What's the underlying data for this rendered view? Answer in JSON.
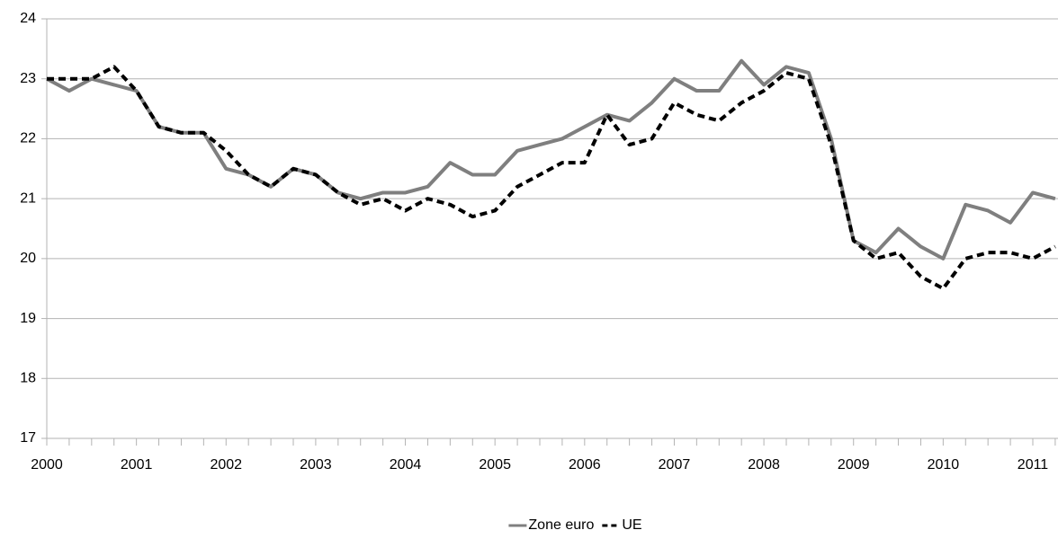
{
  "chart_data": {
    "type": "line",
    "categories": [
      "2000",
      null,
      null,
      null,
      "2001",
      null,
      null,
      null,
      "2002",
      null,
      null,
      null,
      "2003",
      null,
      null,
      null,
      "2004",
      null,
      null,
      null,
      "2005",
      null,
      null,
      null,
      "2006",
      null,
      null,
      null,
      "2007",
      null,
      null,
      null,
      "2008",
      null,
      null,
      null,
      "2009",
      null,
      null,
      null,
      "2010",
      null,
      null,
      null,
      "2011",
      null
    ],
    "series": [
      {
        "name": "Zone euro",
        "color": "#7f7f7f",
        "dash": false,
        "values": [
          23.0,
          22.8,
          23.0,
          22.9,
          22.8,
          22.2,
          22.1,
          22.1,
          21.5,
          21.4,
          21.2,
          21.5,
          21.4,
          21.1,
          21.0,
          21.1,
          21.1,
          21.2,
          21.6,
          21.4,
          21.4,
          21.8,
          21.9,
          22.0,
          22.2,
          22.4,
          22.3,
          22.6,
          23.0,
          22.8,
          22.8,
          23.3,
          22.9,
          23.2,
          23.1,
          22.0,
          20.3,
          20.1,
          20.5,
          20.2,
          20.0,
          20.9,
          20.8,
          20.6,
          21.1,
          21.0
        ]
      },
      {
        "name": "UE",
        "color": "#000000",
        "dash": true,
        "values": [
          23.0,
          23.0,
          23.0,
          23.2,
          22.8,
          22.2,
          22.1,
          22.1,
          21.8,
          21.4,
          21.2,
          21.5,
          21.4,
          21.1,
          20.9,
          21.0,
          20.8,
          21.0,
          20.9,
          20.7,
          20.8,
          21.2,
          21.4,
          21.6,
          21.6,
          22.4,
          21.9,
          22.0,
          22.6,
          22.4,
          22.3,
          22.6,
          22.8,
          23.1,
          23.0,
          21.9,
          20.3,
          20.0,
          20.1,
          19.7,
          19.5,
          20.0,
          20.1,
          20.1,
          20.0,
          20.2
        ]
      }
    ],
    "ylim": [
      17,
      24
    ],
    "yticks": [
      17,
      18,
      19,
      20,
      21,
      22,
      23,
      24
    ],
    "grid": true,
    "legend": "bottom"
  }
}
